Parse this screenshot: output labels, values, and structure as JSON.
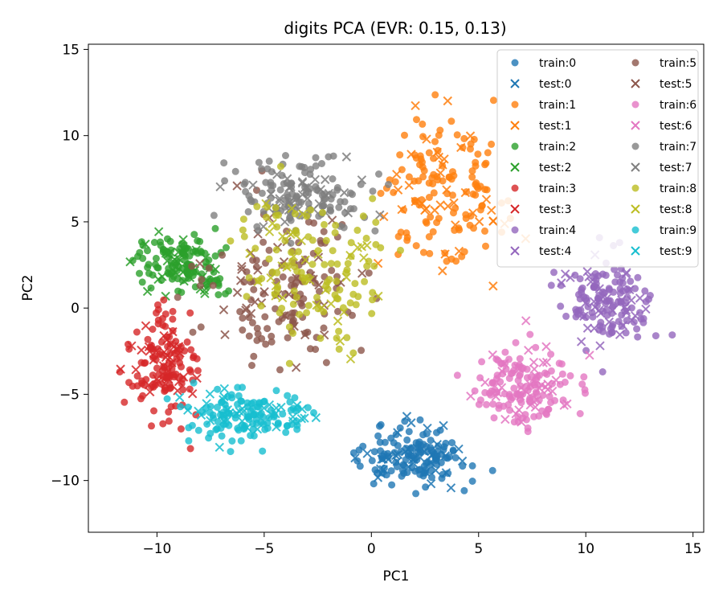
{
  "chart_data": {
    "type": "scatter",
    "title": "digits  PCA (EVR: 0.15, 0.13)",
    "xlabel": "PC1",
    "ylabel": "PC2",
    "xlim": [
      -13.2,
      15.5
    ],
    "ylim": [
      -13.0,
      15.3
    ],
    "xticks": [
      -10,
      -5,
      0,
      5,
      10,
      15
    ],
    "yticks": [
      -10,
      -5,
      0,
      5,
      10,
      15
    ],
    "xtick_labels": [
      "−10",
      "−5",
      "0",
      "5",
      "10",
      "15"
    ],
    "ytick_labels": [
      "−10",
      "−5",
      "0",
      "5",
      "10",
      "15"
    ],
    "grid": false,
    "legend": {
      "placement": "top-right",
      "columns": 2
    },
    "classes": [
      {
        "label": "0",
        "color": "#1f77b4",
        "cx": 2.0,
        "cy": -8.6,
        "sx": 2.2,
        "sy": 1.4,
        "train_n": 120,
        "test_n": 40
      },
      {
        "label": "1",
        "color": "#ff7f0e",
        "cx": 3.2,
        "cy": 6.8,
        "sx": 2.6,
        "sy": 3.6,
        "train_n": 120,
        "test_n": 40
      },
      {
        "label": "2",
        "color": "#2ca02c",
        "cx": -8.8,
        "cy": 2.6,
        "sx": 1.8,
        "sy": 1.3,
        "train_n": 110,
        "test_n": 36
      },
      {
        "label": "3",
        "color": "#d62728",
        "cx": -9.6,
        "cy": -3.2,
        "sx": 1.3,
        "sy": 2.6,
        "train_n": 115,
        "test_n": 38
      },
      {
        "label": "4",
        "color": "#9467bd",
        "cx": 11.0,
        "cy": 0.3,
        "sx": 1.6,
        "sy": 2.2,
        "train_n": 115,
        "test_n": 38
      },
      {
        "label": "5",
        "color": "#8c564b",
        "cx": -4.0,
        "cy": 1.0,
        "sx": 3.2,
        "sy": 3.8,
        "train_n": 115,
        "test_n": 38
      },
      {
        "label": "6",
        "color": "#e377c2",
        "cx": 7.2,
        "cy": -4.6,
        "sx": 2.0,
        "sy": 2.0,
        "train_n": 120,
        "test_n": 40
      },
      {
        "label": "7",
        "color": "#7f7f7f",
        "cx": -3.2,
        "cy": 6.6,
        "sx": 2.6,
        "sy": 1.7,
        "train_n": 115,
        "test_n": 38
      },
      {
        "label": "8",
        "color": "#bcbd22",
        "cx": -2.5,
        "cy": 2.4,
        "sx": 3.4,
        "sy": 3.4,
        "train_n": 110,
        "test_n": 36
      },
      {
        "label": "9",
        "color": "#17becf",
        "cx": -5.6,
        "cy": -6.3,
        "sx": 2.3,
        "sy": 1.3,
        "train_n": 115,
        "test_n": 38
      }
    ],
    "legend_entries": [
      "train:0",
      "test:0",
      "train:1",
      "test:1",
      "train:2",
      "test:2",
      "train:3",
      "test:3",
      "train:4",
      "test:4",
      "train:5",
      "test:5",
      "train:6",
      "test:6",
      "train:7",
      "test:7",
      "train:8",
      "test:8",
      "train:9",
      "test:9"
    ]
  }
}
